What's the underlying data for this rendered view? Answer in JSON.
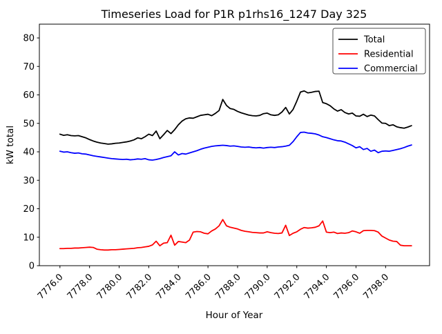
{
  "window": {
    "title": "Timeseries Load for P1R p1rhs16_1247  Day 325"
  },
  "chart_data": {
    "type": "line",
    "title": "Timeseries Load for P1R p1rhs16_1247  Day 325",
    "xlabel": "Hour of Year",
    "ylabel": "kW total",
    "xlim": [
      7774.61,
      7800.97
    ],
    "ylim": [
      0,
      84.85
    ],
    "grid": false,
    "legend": {
      "position": "upper right",
      "entries": [
        "Total",
        "Residential",
        "Commercial"
      ]
    },
    "xticks": {
      "values": [
        7776,
        7778,
        7780,
        7782,
        7784,
        7786,
        7788,
        7790,
        7792,
        7794,
        7796,
        7798
      ],
      "labels": [
        "7776.0",
        "7778.0",
        "7780.0",
        "7782.0",
        "7784.0",
        "7786.0",
        "7788.0",
        "7790.0",
        "7792.0",
        "7794.0",
        "7796.0",
        "7798.0"
      ],
      "rotation": 45
    },
    "yticks": {
      "values": [
        0,
        10,
        20,
        30,
        40,
        50,
        60,
        70,
        80
      ],
      "labels": [
        "0",
        "10",
        "20",
        "30",
        "40",
        "50",
        "60",
        "70",
        "80"
      ]
    },
    "x": [
      7776.0,
      7776.25,
      7776.5,
      7776.75,
      7777.0,
      7777.25,
      7777.5,
      7777.75,
      7778.0,
      7778.25,
      7778.5,
      7778.75,
      7779.0,
      7779.25,
      7779.5,
      7779.75,
      7780.0,
      7780.25,
      7780.5,
      7780.75,
      7781.0,
      7781.25,
      7781.5,
      7781.75,
      7782.0,
      7782.25,
      7782.5,
      7782.75,
      7783.0,
      7783.25,
      7783.5,
      7783.75,
      7784.0,
      7784.25,
      7784.5,
      7784.75,
      7785.0,
      7785.25,
      7785.5,
      7785.75,
      7786.0,
      7786.25,
      7786.5,
      7786.75,
      7787.0,
      7787.25,
      7787.5,
      7787.75,
      7788.0,
      7788.25,
      7788.5,
      7788.75,
      7789.0,
      7789.25,
      7789.5,
      7789.75,
      7790.0,
      7790.25,
      7790.5,
      7790.75,
      7791.0,
      7791.25,
      7791.5,
      7791.75,
      7792.0,
      7792.25,
      7792.5,
      7792.75,
      7793.0,
      7793.25,
      7793.5,
      7793.75,
      7794.0,
      7794.25,
      7794.5,
      7794.75,
      7795.0,
      7795.25,
      7795.5,
      7795.75,
      7796.0,
      7796.25,
      7796.5,
      7796.75,
      7797.0,
      7797.25,
      7797.5,
      7797.75,
      7798.0,
      7798.25,
      7798.5,
      7798.75,
      7799.0,
      7799.25,
      7799.5,
      7799.75
    ],
    "series": [
      {
        "name": "Total",
        "color": "#000000",
        "values": [
          46.2,
          45.8,
          46.0,
          45.7,
          45.6,
          45.7,
          45.3,
          44.9,
          44.3,
          43.8,
          43.4,
          43.1,
          42.9,
          42.7,
          42.8,
          43.0,
          43.1,
          43.3,
          43.5,
          43.8,
          44.2,
          44.9,
          44.6,
          45.3,
          46.2,
          45.7,
          47.3,
          44.6,
          46.0,
          47.5,
          46.4,
          47.8,
          49.5,
          50.8,
          51.6,
          51.9,
          51.8,
          52.3,
          52.8,
          53.0,
          53.2,
          52.7,
          53.5,
          54.5,
          58.4,
          56.3,
          55.2,
          54.9,
          54.2,
          53.7,
          53.3,
          52.9,
          52.7,
          52.6,
          52.8,
          53.4,
          53.6,
          53.0,
          52.8,
          53.0,
          54.0,
          55.6,
          53.3,
          54.9,
          57.8,
          61.0,
          61.4,
          60.7,
          60.9,
          61.2,
          61.3,
          57.3,
          56.9,
          56.2,
          55.1,
          54.3,
          54.8,
          53.8,
          53.3,
          53.6,
          52.6,
          52.5,
          53.2,
          52.4,
          52.9,
          52.6,
          51.3,
          50.1,
          50.0,
          49.2,
          49.5,
          48.8,
          48.5,
          48.3,
          48.7,
          49.2
        ]
      },
      {
        "name": "Residential",
        "color": "#ff0000",
        "values": [
          6.0,
          6.0,
          6.1,
          6.1,
          6.2,
          6.2,
          6.3,
          6.4,
          6.5,
          6.4,
          5.8,
          5.6,
          5.5,
          5.5,
          5.6,
          5.6,
          5.7,
          5.8,
          5.9,
          6.0,
          6.1,
          6.3,
          6.4,
          6.6,
          6.8,
          7.3,
          8.6,
          7.0,
          7.9,
          8.1,
          10.7,
          7.2,
          8.5,
          8.3,
          8.1,
          9.0,
          11.8,
          12.0,
          11.9,
          11.4,
          11.2,
          12.2,
          12.9,
          14.0,
          16.2,
          14.0,
          13.5,
          13.2,
          12.9,
          12.4,
          12.1,
          11.9,
          11.7,
          11.6,
          11.5,
          11.5,
          11.9,
          11.6,
          11.4,
          11.3,
          11.5,
          14.2,
          10.6,
          11.4,
          11.9,
          12.8,
          13.4,
          13.2,
          13.3,
          13.5,
          14.0,
          15.7,
          11.8,
          11.6,
          11.8,
          11.3,
          11.5,
          11.4,
          11.6,
          12.2,
          11.9,
          11.4,
          12.3,
          12.4,
          12.4,
          12.3,
          11.8,
          10.4,
          9.7,
          9.0,
          8.6,
          8.5,
          7.2,
          7.0,
          7.0,
          7.0
        ]
      },
      {
        "name": "Commercial",
        "color": "#0000ff",
        "values": [
          40.2,
          39.9,
          40.0,
          39.7,
          39.5,
          39.6,
          39.3,
          39.2,
          38.9,
          38.6,
          38.4,
          38.2,
          38.0,
          37.8,
          37.6,
          37.5,
          37.4,
          37.3,
          37.4,
          37.2,
          37.3,
          37.5,
          37.4,
          37.6,
          37.2,
          37.1,
          37.3,
          37.6,
          38.0,
          38.3,
          38.6,
          40.0,
          38.9,
          39.4,
          39.2,
          39.6,
          40.0,
          40.4,
          40.9,
          41.3,
          41.6,
          41.9,
          42.1,
          42.2,
          42.3,
          42.2,
          42.0,
          42.1,
          41.9,
          41.7,
          41.6,
          41.7,
          41.5,
          41.4,
          41.5,
          41.3,
          41.5,
          41.6,
          41.5,
          41.7,
          41.8,
          42.0,
          42.3,
          43.6,
          45.3,
          46.8,
          46.9,
          46.6,
          46.5,
          46.3,
          45.9,
          45.3,
          45.0,
          44.6,
          44.2,
          43.9,
          43.8,
          43.4,
          42.8,
          42.2,
          41.4,
          41.8,
          40.8,
          41.2,
          40.2,
          40.6,
          39.7,
          40.2,
          40.3,
          40.2,
          40.5,
          40.8,
          41.1,
          41.5,
          42.0,
          42.4
        ]
      }
    ]
  }
}
